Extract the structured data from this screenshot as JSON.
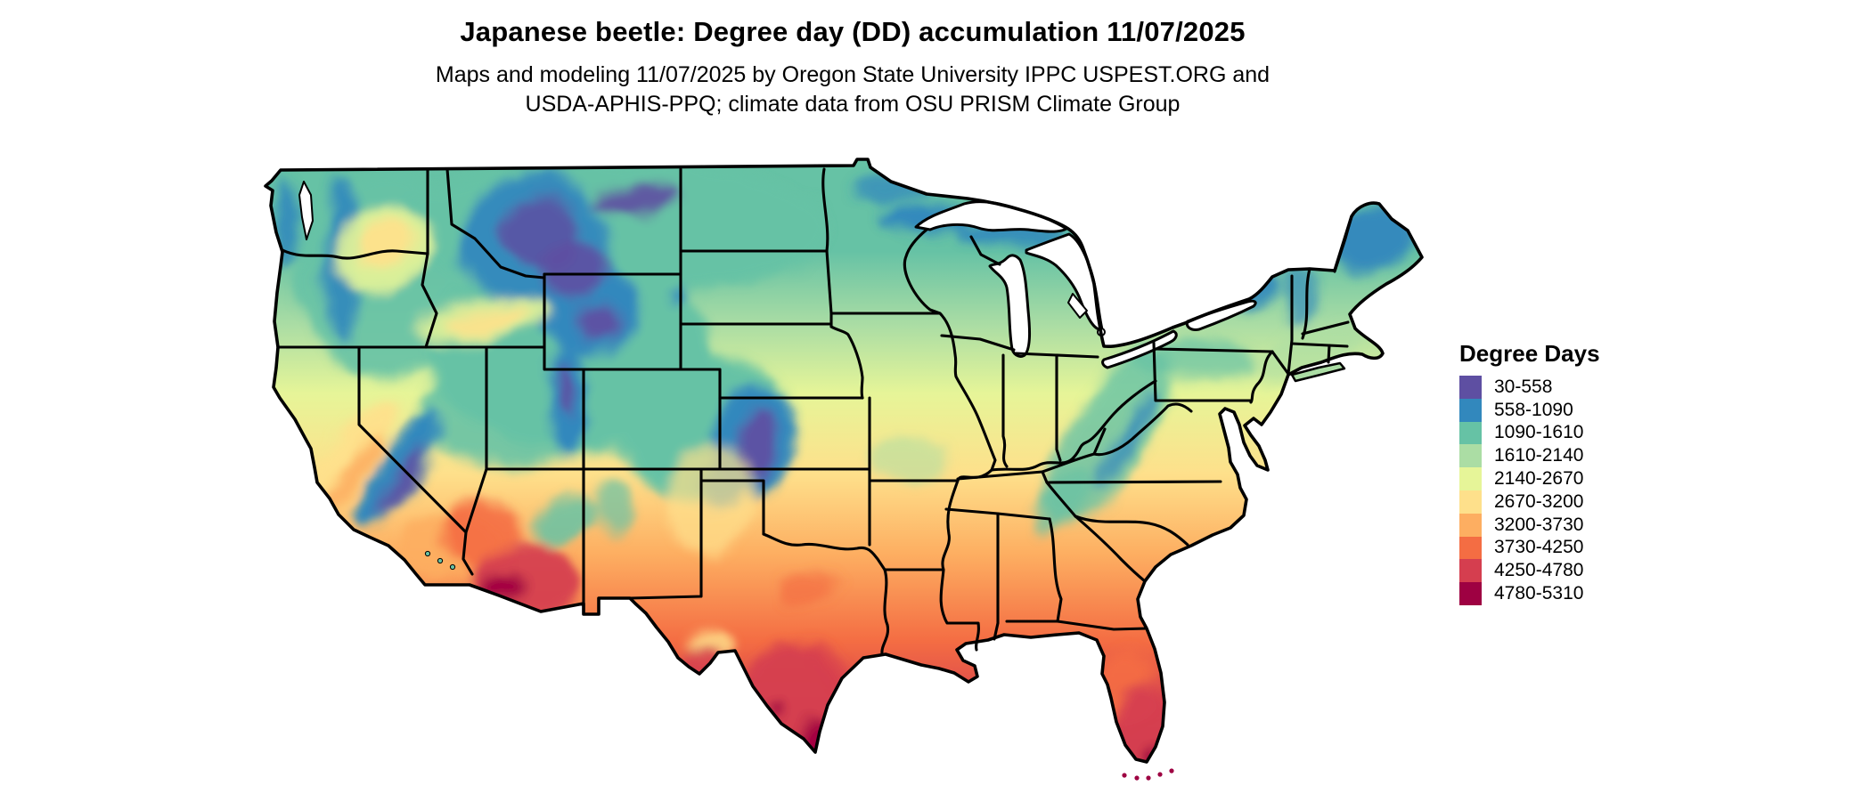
{
  "title": "Japanese beetle: Degree day (DD) accumulation 11/07/2025",
  "subtitle": {
    "line1": "Maps and modeling 11/07/2025 by Oregon State University IPPC USPEST.ORG and",
    "line2": "USDA-APHIS-PPQ; climate data from OSU PRISM Climate Group"
  },
  "legend": {
    "title": "Degree Days",
    "entries": [
      {
        "range": "30-558",
        "color": "#5e4fa2"
      },
      {
        "range": "558-1090",
        "color": "#3288bd"
      },
      {
        "range": "1090-1610",
        "color": "#66c2a5"
      },
      {
        "range": "1610-2140",
        "color": "#abdda4"
      },
      {
        "range": "2140-2670",
        "color": "#e6f598"
      },
      {
        "range": "2670-3200",
        "color": "#fee08b"
      },
      {
        "range": "3200-3730",
        "color": "#fdae61"
      },
      {
        "range": "3730-4250",
        "color": "#f46d43"
      },
      {
        "range": "4250-4780",
        "color": "#d53e4f"
      },
      {
        "range": "4780-5310",
        "color": "#9e0142"
      }
    ]
  },
  "map": {
    "background_color": "#ffffff",
    "state_border_color": "#000000",
    "lakes_color": "#ffffff"
  }
}
